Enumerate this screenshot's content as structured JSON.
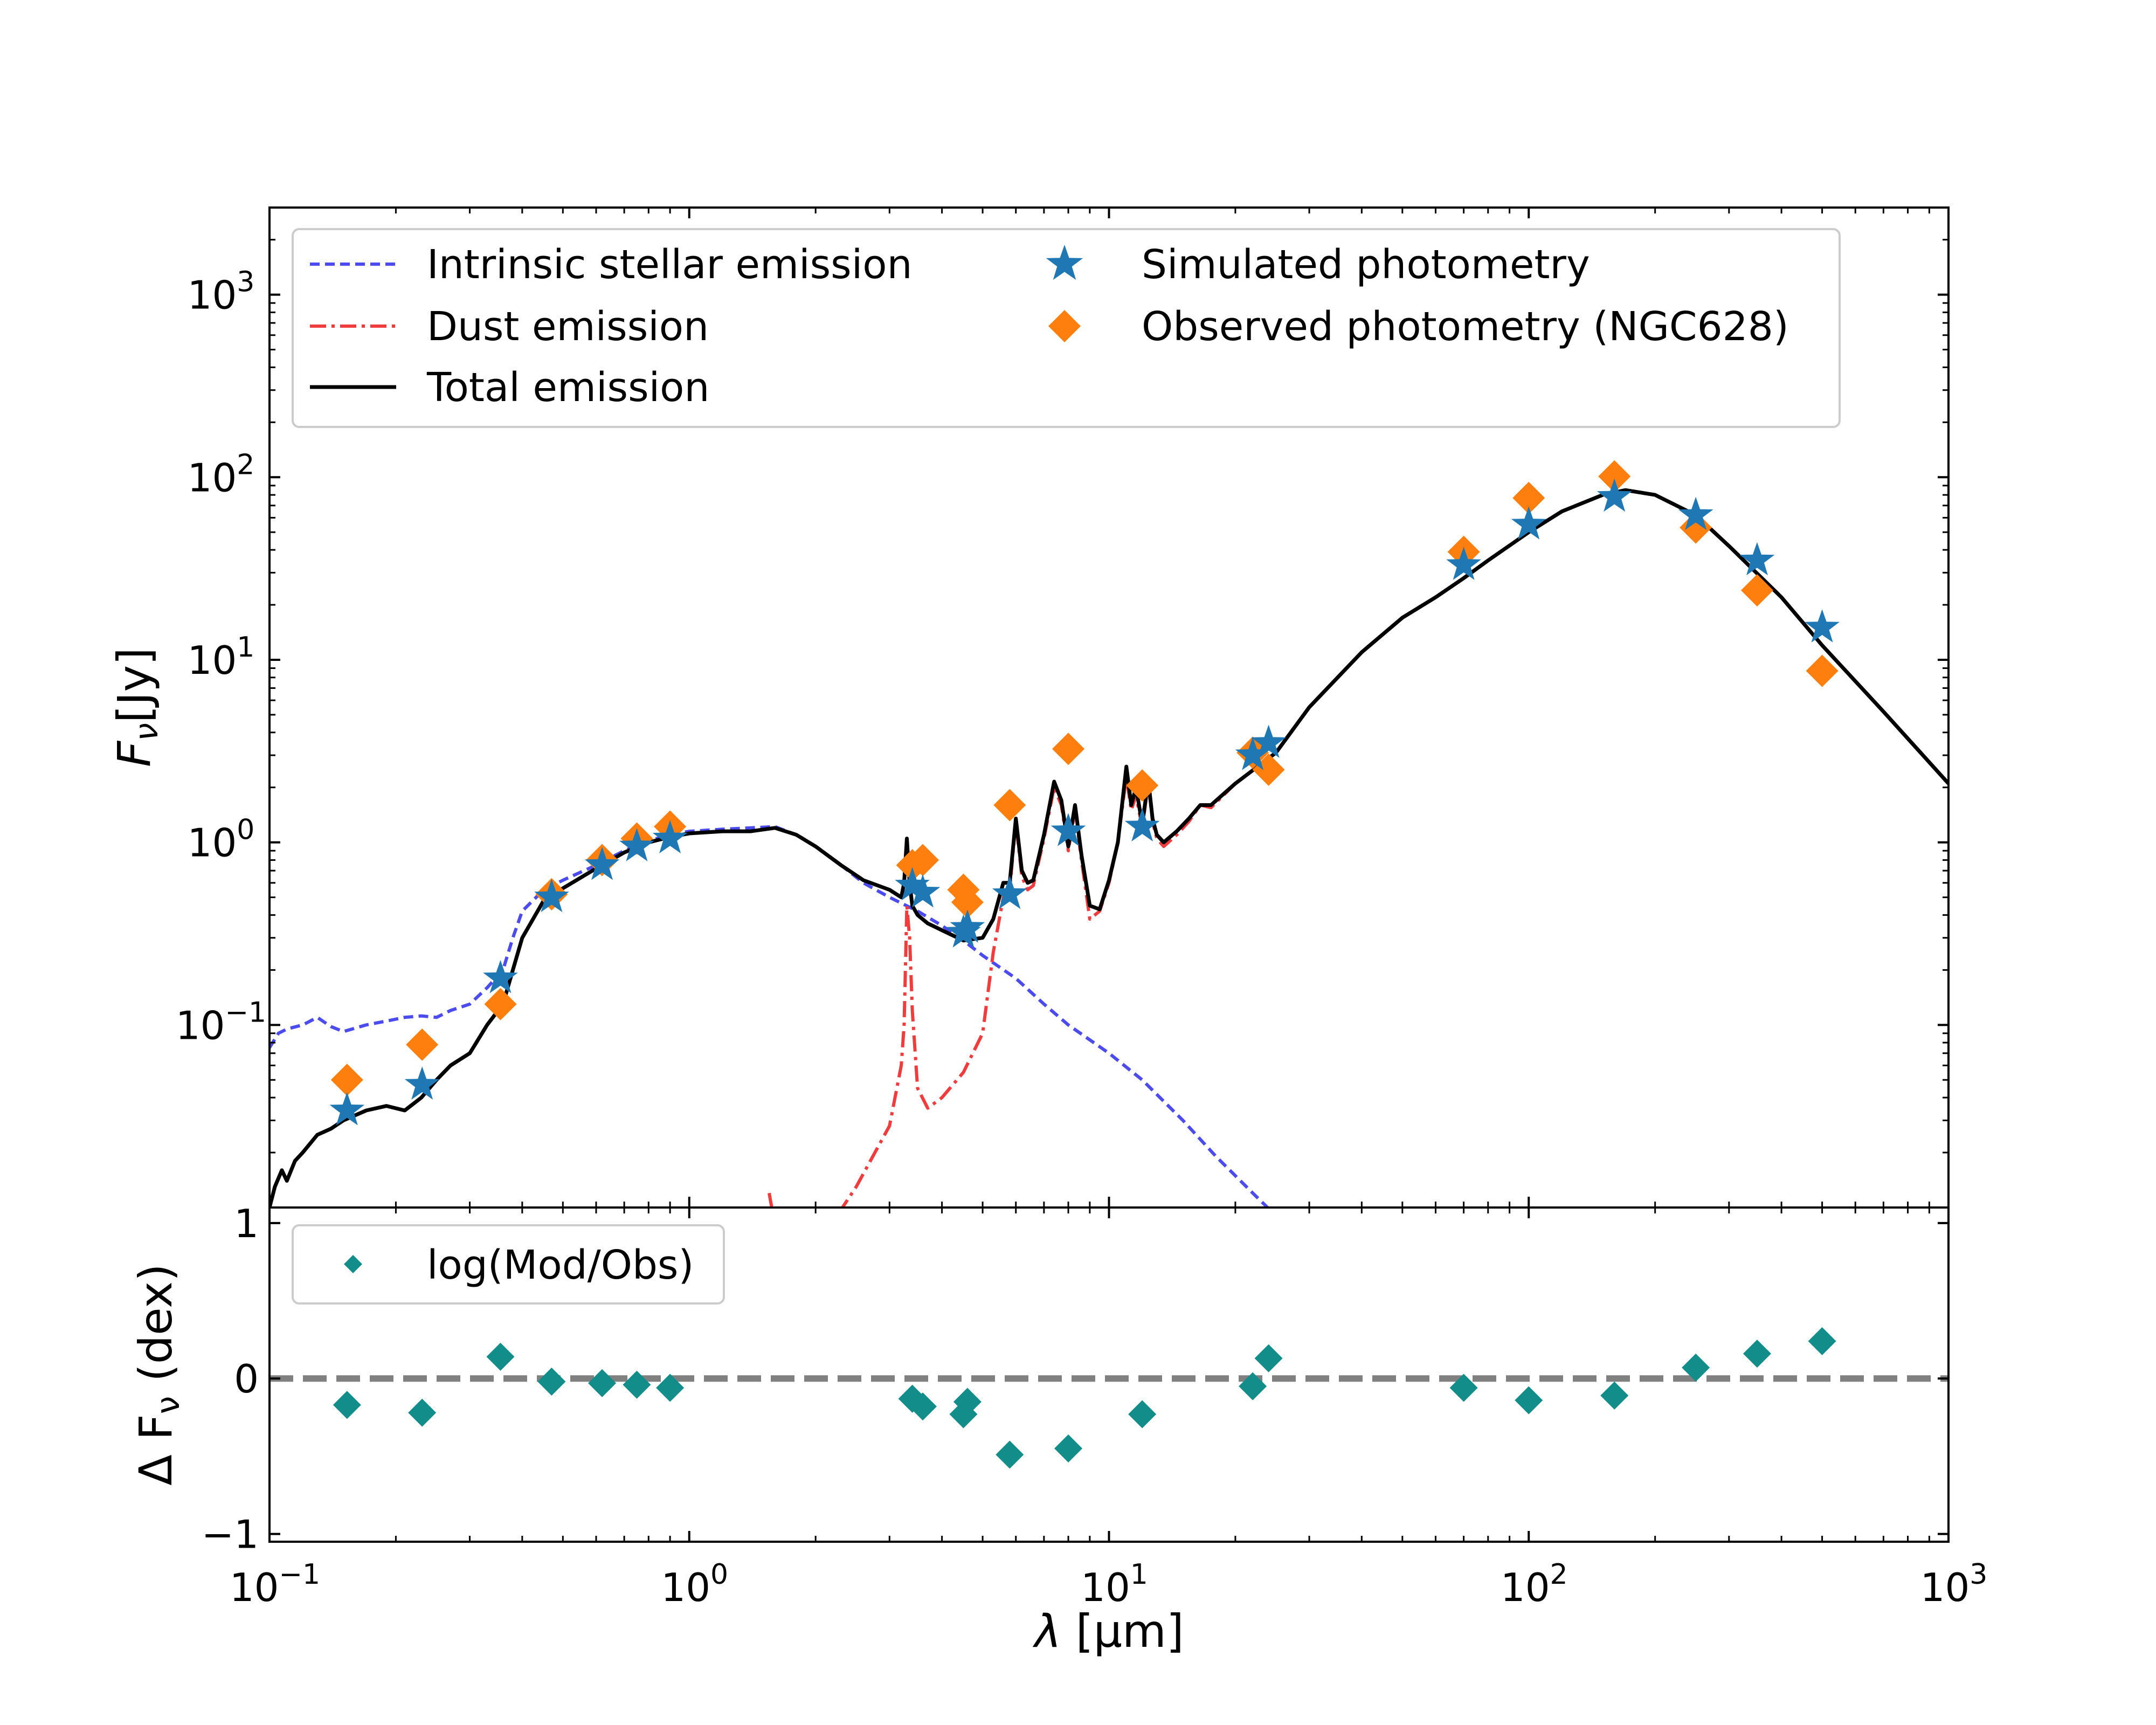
{
  "chart_data": [
    {
      "type": "line",
      "panel": "top",
      "xscale": "log",
      "yscale": "log",
      "xlim": [
        0.1,
        1000
      ],
      "ylim": [
        0.01,
        3000
      ],
      "ylabel_var": "F",
      "ylabel_sub": "ν",
      "ylabel_unit": "[Jy]",
      "ytick_labels": [
        {
          "v": 0.1,
          "base": "10",
          "exp": "−1"
        },
        {
          "v": 1,
          "base": "10",
          "exp": "0"
        },
        {
          "v": 10,
          "base": "10",
          "exp": "1"
        },
        {
          "v": 100,
          "base": "10",
          "exp": "2"
        },
        {
          "v": 1000,
          "base": "10",
          "exp": "3"
        }
      ],
      "legend": {
        "position": "upper-left",
        "entries": {
          "stellar": "Intrinsic stellar emission",
          "dust": "Dust emission",
          "total": "Total emission",
          "simulated": "Simulated photometry",
          "observed": "Observed photometry (NGC628)"
        }
      },
      "colors": {
        "stellar": "#4b4bf0",
        "dust": "#f03c3c",
        "total": "#000000",
        "simulated": "#1f77b4",
        "observed": "#ff7f0e"
      },
      "series": [
        {
          "name": "Intrinsic stellar emission",
          "key": "stellar",
          "x": [
            0.1,
            0.105,
            0.11,
            0.12,
            0.13,
            0.14,
            0.15,
            0.17,
            0.19,
            0.21,
            0.23,
            0.25,
            0.27,
            0.3,
            0.33,
            0.36,
            0.38,
            0.4,
            0.45,
            0.5,
            0.6,
            0.7,
            0.8,
            0.9,
            1.0,
            1.2,
            1.4,
            1.6,
            1.8,
            2.0,
            2.3,
            2.6,
            3.0,
            3.5,
            4.0,
            4.5,
            5.0,
            6.0,
            7.0,
            8.0,
            10,
            12,
            15,
            18,
            22,
            25
          ],
          "y": [
            0.075,
            0.09,
            0.095,
            0.1,
            0.11,
            0.098,
            0.092,
            0.1,
            0.105,
            0.11,
            0.112,
            0.11,
            0.12,
            0.13,
            0.16,
            0.2,
            0.3,
            0.42,
            0.55,
            0.62,
            0.75,
            0.9,
            1.02,
            1.1,
            1.15,
            1.18,
            1.2,
            1.22,
            1.1,
            0.95,
            0.75,
            0.6,
            0.5,
            0.42,
            0.35,
            0.29,
            0.24,
            0.18,
            0.13,
            0.1,
            0.07,
            0.05,
            0.03,
            0.019,
            0.012,
            0.009
          ]
        },
        {
          "name": "Dust emission",
          "key": "dust",
          "x": [
            1.55,
            1.6,
            2.0,
            2.5,
            3.0,
            3.2,
            3.25,
            3.3,
            3.35,
            3.4,
            3.5,
            3.7,
            4.0,
            4.5,
            5.0,
            5.3,
            5.6,
            5.8,
            6.0,
            6.2,
            6.4,
            6.6,
            7.0,
            7.4,
            7.7,
            8.0,
            8.3,
            8.6,
            9.0,
            9.5,
            10.0,
            10.5,
            11.0,
            11.3,
            11.6,
            12.0,
            12.4,
            12.7,
            13.0,
            13.5,
            14.5,
            15.5,
            16.5,
            17.5,
            20,
            25,
            30,
            40,
            50,
            60,
            70,
            80,
            100,
            120,
            150,
            170,
            200,
            250,
            300,
            400,
            500,
            700,
            1000
          ],
          "y": [
            0.012,
            0.008,
            0.006,
            0.013,
            0.028,
            0.06,
            0.1,
            0.45,
            0.3,
            0.12,
            0.045,
            0.035,
            0.04,
            0.055,
            0.09,
            0.25,
            0.5,
            0.55,
            1.3,
            0.65,
            0.55,
            0.58,
            1.05,
            2.0,
            1.6,
            0.9,
            1.5,
            0.8,
            0.38,
            0.42,
            0.6,
            1.0,
            2.3,
            1.5,
            1.8,
            1.2,
            2.1,
            1.3,
            1.05,
            0.95,
            1.1,
            1.3,
            1.6,
            1.55,
            2.1,
            3.1,
            5.5,
            11,
            17,
            22,
            28,
            35,
            50,
            65,
            80,
            85,
            80,
            62,
            42,
            22,
            12,
            5.2,
            2.1
          ]
        },
        {
          "name": "Total emission",
          "key": "total",
          "x": [
            0.1,
            0.103,
            0.107,
            0.11,
            0.115,
            0.12,
            0.13,
            0.14,
            0.15,
            0.17,
            0.19,
            0.21,
            0.23,
            0.25,
            0.27,
            0.3,
            0.33,
            0.36,
            0.38,
            0.4,
            0.45,
            0.5,
            0.6,
            0.7,
            0.8,
            0.9,
            1.0,
            1.2,
            1.4,
            1.6,
            1.8,
            2.0,
            2.3,
            2.6,
            3.0,
            3.2,
            3.25,
            3.3,
            3.35,
            3.4,
            3.5,
            3.7,
            4.0,
            4.5,
            5.0,
            5.3,
            5.6,
            5.8,
            6.0,
            6.2,
            6.4,
            6.6,
            7.0,
            7.4,
            7.7,
            8.0,
            8.3,
            8.6,
            9.0,
            9.5,
            10.0,
            10.5,
            11.0,
            11.3,
            11.6,
            12.0,
            12.4,
            12.7,
            13.0,
            13.5,
            14.5,
            15.5,
            16.5,
            17.5,
            20,
            25,
            30,
            40,
            50,
            60,
            70,
            80,
            100,
            120,
            150,
            170,
            200,
            250,
            300,
            400,
            500,
            700,
            1000
          ],
          "y": [
            0.01,
            0.013,
            0.016,
            0.014,
            0.018,
            0.02,
            0.025,
            0.027,
            0.03,
            0.034,
            0.036,
            0.034,
            0.04,
            0.05,
            0.06,
            0.07,
            0.1,
            0.13,
            0.2,
            0.3,
            0.48,
            0.56,
            0.72,
            0.88,
            1.0,
            1.07,
            1.12,
            1.15,
            1.15,
            1.2,
            1.1,
            0.95,
            0.75,
            0.62,
            0.55,
            0.5,
            0.6,
            1.05,
            0.6,
            0.45,
            0.4,
            0.36,
            0.33,
            0.29,
            0.3,
            0.38,
            0.6,
            0.6,
            1.35,
            0.7,
            0.6,
            0.62,
            1.1,
            2.15,
            1.7,
            0.95,
            1.6,
            0.85,
            0.45,
            0.43,
            0.62,
            1.0,
            2.6,
            1.6,
            2.0,
            1.25,
            2.2,
            1.35,
            1.1,
            1.0,
            1.15,
            1.35,
            1.6,
            1.6,
            2.1,
            3.1,
            5.5,
            11,
            17,
            22,
            28,
            35,
            50,
            65,
            80,
            85,
            80,
            62,
            42,
            22,
            12,
            5.2,
            2.1
          ]
        },
        {
          "name": "Simulated photometry",
          "key": "simulated",
          "x": [
            0.153,
            0.231,
            0.355,
            0.47,
            0.62,
            0.75,
            0.9,
            3.4,
            3.6,
            4.5,
            4.6,
            5.8,
            8.0,
            12.0,
            22.0,
            24.0,
            70,
            100,
            160,
            250,
            350,
            500
          ],
          "y": [
            0.034,
            0.047,
            0.18,
            0.5,
            0.75,
            0.95,
            1.05,
            0.58,
            0.53,
            0.32,
            0.34,
            0.52,
            1.15,
            1.22,
            3.0,
            3.5,
            33,
            55,
            78,
            62,
            35,
            15
          ]
        },
        {
          "name": "Observed photometry (NGC628)",
          "key": "observed",
          "x": [
            0.153,
            0.231,
            0.355,
            0.47,
            0.62,
            0.75,
            0.9,
            3.4,
            3.6,
            4.5,
            4.6,
            5.8,
            8.0,
            12.0,
            22.0,
            24.0,
            70,
            100,
            160,
            250,
            350,
            500
          ],
          "y": [
            0.05,
            0.078,
            0.13,
            0.52,
            0.8,
            1.05,
            1.22,
            0.75,
            0.8,
            0.55,
            0.47,
            1.6,
            3.25,
            2.05,
            3.1,
            2.5,
            39,
            77,
            101,
            53,
            24,
            8.7
          ]
        }
      ]
    },
    {
      "type": "scatter",
      "panel": "bottom",
      "xscale": "log",
      "xlim": [
        0.1,
        1000
      ],
      "ylim": [
        -1.05,
        1.1
      ],
      "xlabel_var": "λ",
      "xlabel_unit": "[μm]",
      "ylabel": "Δ F",
      "ylabel_sub": "ν",
      "ylabel_unit": "(dex)",
      "xtick_labels": [
        {
          "v": 0.1,
          "base": "10",
          "exp": "−1"
        },
        {
          "v": 1,
          "base": "10",
          "exp": "0"
        },
        {
          "v": 10,
          "base": "10",
          "exp": "1"
        },
        {
          "v": 100,
          "base": "10",
          "exp": "2"
        },
        {
          "v": 1000,
          "base": "10",
          "exp": "3"
        }
      ],
      "ytick_labels": [
        {
          "v": 1,
          "label": "1"
        },
        {
          "v": 0,
          "label": "0"
        },
        {
          "v": -1,
          "label": "−1"
        }
      ],
      "reference_line": {
        "y": 0,
        "style": "dashed",
        "color": "#808080"
      },
      "legend": {
        "position": "upper-left",
        "entries": {
          "residual": "log(Mod/Obs)"
        }
      },
      "colors": {
        "residual": "#138d8a"
      },
      "series": [
        {
          "name": "log(Mod/Obs)",
          "key": "residual",
          "x": [
            0.153,
            0.231,
            0.355,
            0.47,
            0.62,
            0.75,
            0.9,
            3.4,
            3.6,
            4.5,
            4.6,
            5.8,
            8.0,
            12.0,
            22.0,
            24.0,
            70,
            100,
            160,
            250,
            350,
            500
          ],
          "y": [
            -0.17,
            -0.22,
            0.14,
            -0.02,
            -0.03,
            -0.04,
            -0.06,
            -0.13,
            -0.18,
            -0.23,
            -0.15,
            -0.49,
            -0.45,
            -0.23,
            -0.05,
            0.13,
            -0.06,
            -0.14,
            -0.11,
            0.07,
            0.16,
            0.24
          ]
        }
      ]
    }
  ]
}
